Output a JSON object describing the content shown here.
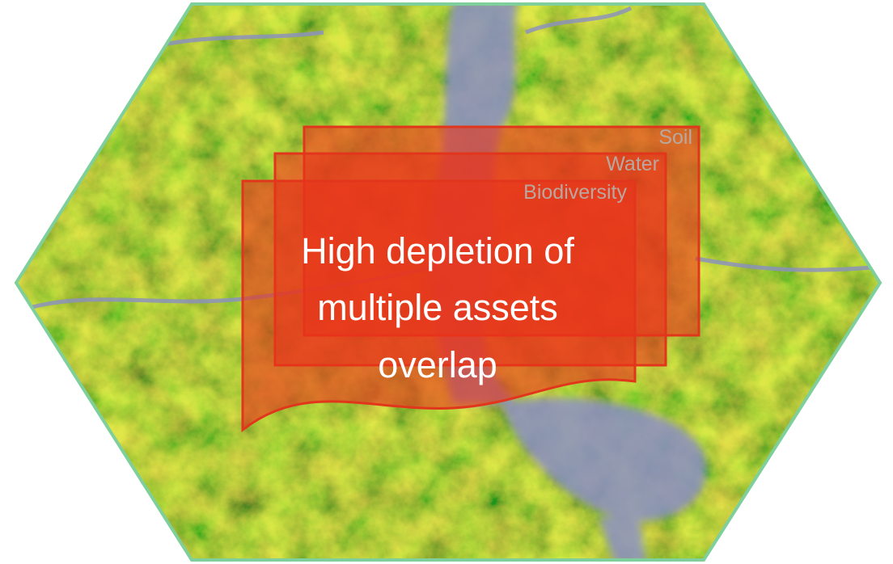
{
  "layers": [
    {
      "label": "Soil"
    },
    {
      "label": "Water"
    },
    {
      "label": "Biodiversity"
    }
  ],
  "message": {
    "lines": [
      "High depletion of",
      "multiple assets",
      "overlap"
    ]
  }
}
